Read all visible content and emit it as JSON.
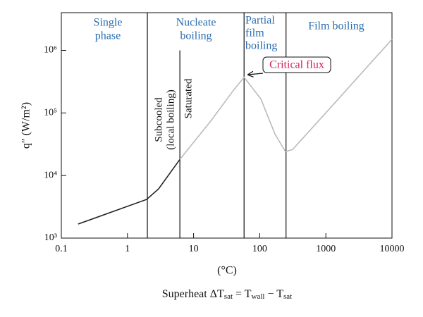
{
  "chart_data": {
    "type": "line",
    "x_scale": "log",
    "y_scale": "log",
    "xlim": [
      0.1,
      10000
    ],
    "ylim": [
      1000,
      4000000
    ],
    "xticks": [
      0.1,
      1,
      10,
      100,
      1000,
      10000
    ],
    "yticks": [
      {
        "value": 1000,
        "label": "10³"
      },
      {
        "value": 10000,
        "label": "10⁴"
      },
      {
        "value": 100000,
        "label": "10⁵"
      },
      {
        "value": 1000000,
        "label": "10⁶"
      }
    ],
    "y_label": "q″ (W/m²)",
    "x_unit": "(°C)",
    "x_label_parts": [
      "Superheat   ΔT",
      "sat",
      " = T",
      "wall",
      " − T",
      "sat"
    ],
    "series": [
      {
        "color": "#222222",
        "x": [
          0.18,
          1.95,
          2.96,
          6.2
        ],
        "values": [
          1680,
          4150,
          6120,
          18100
        ]
      },
      {
        "color": "#bbbbbb",
        "x": [
          6.2,
          18.7,
          40,
          58,
          104,
          170,
          245,
          314,
          1550,
          10000
        ],
        "values": [
          18100,
          77000,
          230000,
          370000,
          168000,
          46000,
          24100,
          26000,
          168000,
          1500000
        ]
      }
    ],
    "boundaries": [
      {
        "x": 2,
        "top": 4000000
      },
      {
        "x": 6.2,
        "top": 1000000
      },
      {
        "x": 58,
        "top": 4000000
      },
      {
        "x": 250,
        "top": 4000000
      }
    ],
    "regions": [
      [
        "Single",
        "phase"
      ],
      [
        "Nucleate",
        "boiling"
      ],
      [
        "Partial",
        "film",
        "boiling"
      ],
      [
        "Film boiling"
      ]
    ],
    "annotations": [
      [
        "Subcooled",
        "(local boiling)"
      ],
      [
        "Saturated"
      ],
      [
        "Critical flux"
      ]
    ]
  }
}
